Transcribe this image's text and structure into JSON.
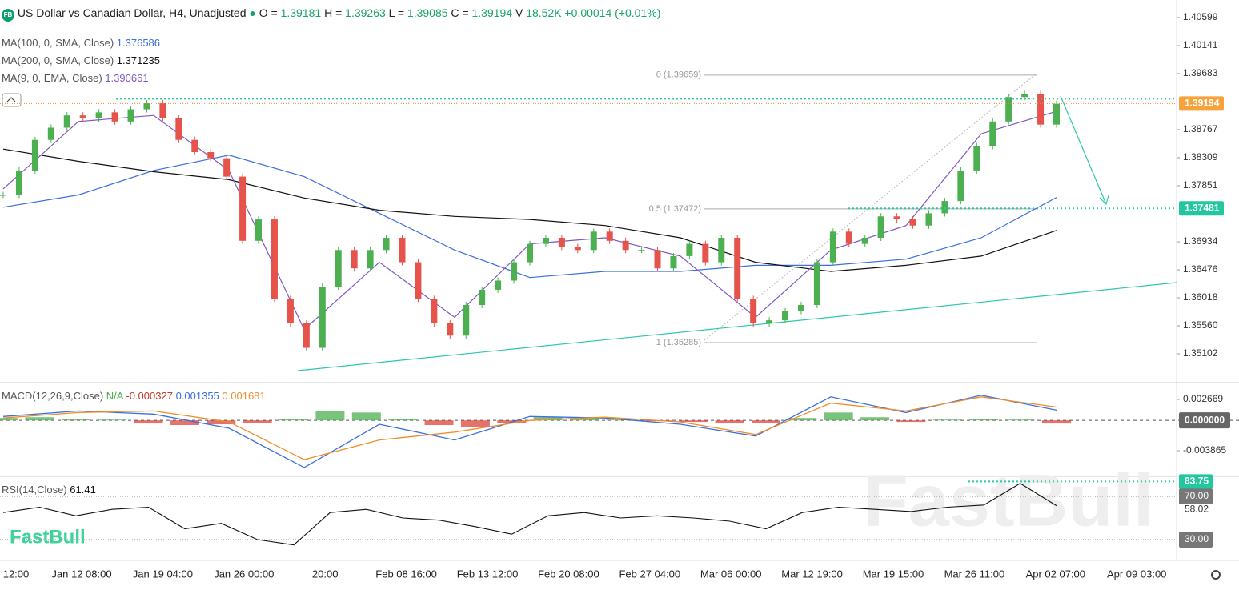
{
  "header": {
    "icon": "FB",
    "title": "US Dollar vs Canadian Dollar, H4, Unadjusted",
    "quote": [
      {
        "name": "O =",
        "value": "1.39181"
      },
      {
        "name": "H =",
        "value": "1.39263"
      },
      {
        "name": "L =",
        "value": "1.39085"
      },
      {
        "name": "C =",
        "value": "1.39194"
      },
      {
        "name": "V",
        "value": "18.52K"
      }
    ],
    "change": "+0.00014 (+0.01%)",
    "logo": "FastBull",
    "watermark": "FastBull"
  },
  "chart_data": [
    {
      "type": "candlestick",
      "up_color": "#4caf50",
      "down_color": "#e5534b",
      "categories": [
        "12:00",
        "Jan 12 08:00",
        "Jan 19 04:00",
        "Jan 26 00:00",
        "20:00",
        "Feb 08 16:00",
        "Feb 13 12:00",
        "Feb 20 08:00",
        "Feb 27 04:00",
        "Mar 06 00:00",
        "Mar 12 19:00",
        "Mar 19 15:00",
        "Mar 26 11:00",
        "Apr 02 07:00",
        "Apr 09 03:00"
      ],
      "closes": [
        1.377,
        1.381,
        1.386,
        1.388,
        1.39,
        1.3895,
        1.3905,
        1.389,
        1.391,
        1.392,
        1.3895,
        1.386,
        1.384,
        1.383,
        1.38,
        1.3695,
        1.373,
        1.36,
        1.356,
        1.352,
        1.362,
        1.368,
        1.365,
        1.368,
        1.37,
        1.366,
        1.36,
        1.356,
        1.354,
        1.359,
        1.3615,
        1.363,
        1.366,
        1.369,
        1.37,
        1.3685,
        1.368,
        1.371,
        1.3695,
        1.368,
        1.368,
        1.365,
        1.367,
        1.369,
        1.366,
        1.37,
        1.36,
        1.356,
        1.3565,
        1.358,
        1.359,
        1.366,
        1.371,
        1.369,
        1.37,
        1.3735,
        1.373,
        1.372,
        1.374,
        1.376,
        1.381,
        1.385,
        1.389,
        1.393,
        1.3935,
        1.3885,
        1.3919
      ],
      "series": [
        {
          "name": "MA(100, 0, SMA, Close)",
          "color": "#3b6fe0",
          "last": 1.376586,
          "values": [
            1.375,
            1.377,
            1.381,
            1.3835,
            1.38,
            1.374,
            1.368,
            1.3635,
            1.3645,
            1.3645,
            1.3655,
            1.3655,
            1.3665,
            1.37,
            1.37659
          ]
        },
        {
          "name": "MA(200, 0, SMA, Close)",
          "color": "#111111",
          "last": 1.371235,
          "values": [
            1.3845,
            1.3825,
            1.3808,
            1.3795,
            1.3765,
            1.3745,
            1.3735,
            1.373,
            1.372,
            1.37,
            1.366,
            1.3645,
            1.3655,
            1.367,
            1.3712
          ]
        },
        {
          "name": "MA(9, 0, EMA, Close)",
          "color": "#7e57c2",
          "last": 1.390661,
          "values": [
            1.378,
            1.389,
            1.39,
            1.381,
            1.355,
            1.366,
            1.357,
            1.369,
            1.37,
            1.367,
            1.357,
            1.368,
            1.372,
            1.387,
            1.39066
          ]
        }
      ],
      "ylim": [
        1.34631,
        1.40887
      ],
      "yticks": [
        1.40599,
        1.40141,
        1.39683,
        1.38767,
        1.38309,
        1.37851,
        1.36934,
        1.36476,
        1.36018,
        {
          "value": 1.3556,
          "label": "1.35560"
        },
        1.35102
      ],
      "current_price": 1.39194,
      "level": 1.37481,
      "fib": [
        {
          "value": 1.39659,
          "label": "0 (1.39659)"
        },
        {
          "value": 1.37472,
          "label": "0.5 (1.37472)"
        },
        {
          "value": 1.35285,
          "label": "1 (1.35285)"
        }
      ]
    },
    {
      "type": "macd",
      "name": "MACD(12,26,9,Close)",
      "histogram_name": "N/A",
      "ylim": [
        -0.00713,
        0.004813
      ],
      "yticks": [
        0.002669,
        {
          "value": 0,
          "label": "0.000000"
        },
        -0.003865
      ],
      "histogram": {
        "last": -0.000327,
        "values": [
          0.0003,
          0.0004,
          0.0002,
          0.0001,
          -0.0004,
          -0.0006,
          -0.0005,
          -0.0003,
          0.0002,
          0.0012,
          0.001,
          0.0002,
          -0.0006,
          -0.0008,
          -0.0003,
          0.0004,
          0.0003,
          0.0001,
          -0.0001,
          -0.0002,
          -0.0004,
          -0.0003,
          0.0003,
          0.001,
          0.0004,
          -0.0002,
          0.0001,
          0.0002,
          0.0001,
          -0.0004
        ]
      },
      "series": [
        {
          "color": "#3b6fe0",
          "last": 0.001355,
          "values": [
            0.0005,
            0.0012,
            0.0008,
            -0.001,
            -0.006,
            -0.0005,
            -0.0025,
            0.0005,
            0.0003,
            -0.0005,
            -0.002,
            0.003,
            0.001,
            0.0032,
            0.0013
          ]
        },
        {
          "color": "#f28c28",
          "last": 0.001681,
          "values": [
            0.0003,
            0.001,
            0.0012,
            -0.0002,
            -0.005,
            -0.0025,
            -0.0015,
            0,
            0.0004,
            -0.0002,
            -0.0018,
            0.0022,
            0.0012,
            0.003,
            0.0017
          ]
        }
      ]
    },
    {
      "type": "rsi",
      "name": "RSI(14,Close)",
      "last": 61.41,
      "ylim": [
        10.7,
        88.5
      ],
      "yticks": [
        {
          "value": 70,
          "label": "70.00"
        },
        58.02,
        {
          "value": 30,
          "label": "30.00"
        }
      ],
      "level": 83.75,
      "values": [
        55,
        60,
        52,
        58,
        60,
        40,
        45,
        30,
        25,
        55,
        58,
        50,
        48,
        42,
        35,
        52,
        55,
        50,
        52,
        50,
        47,
        40,
        55,
        60,
        58,
        56,
        60,
        62,
        82,
        61.41
      ]
    }
  ]
}
